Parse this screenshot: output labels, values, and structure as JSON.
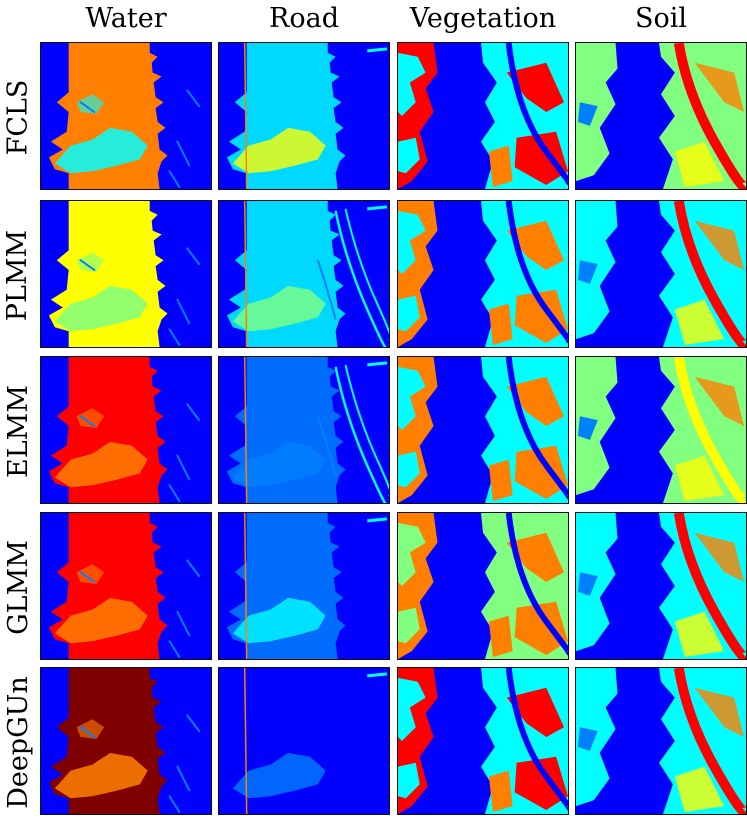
{
  "columns": [
    "Water",
    "Road",
    "Vegetation",
    "Soil"
  ],
  "rows": [
    "FCLS",
    "PLMM",
    "ELMM",
    "GLMM",
    "DeepGUn"
  ],
  "colormap": {
    "name": "jet",
    "stops": [
      "#00007f",
      "#0000ff",
      "#0080ff",
      "#00ffff",
      "#80ff80",
      "#ffff00",
      "#ff8000",
      "#ff0000",
      "#7f0000"
    ]
  }
}
